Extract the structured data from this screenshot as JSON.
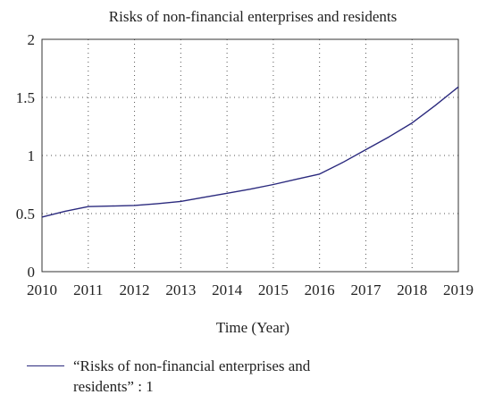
{
  "chart_data": {
    "type": "line",
    "title": "Risks of non-financial enterprises and residents",
    "xlabel": "Time (Year)",
    "ylabel": "",
    "xlim": [
      2010,
      2019
    ],
    "ylim": [
      0,
      2
    ],
    "x_ticks": [
      "2010",
      "2011",
      "2012",
      "2013",
      "2014",
      "2015",
      "2016",
      "2017",
      "2018",
      "2019"
    ],
    "y_ticks": [
      "0",
      "0.5",
      "1",
      "1.5",
      "2"
    ],
    "grid": true,
    "legend_position": "bottom",
    "series": [
      {
        "name": "“Risks of non-financial enterprises and residents” : 1",
        "color": "#2b2a7e",
        "x": [
          2010,
          2010.5,
          2011,
          2011.5,
          2012,
          2012.5,
          2013,
          2013.5,
          2014,
          2014.5,
          2015,
          2015.5,
          2016,
          2016.5,
          2017,
          2017.5,
          2018,
          2018.5,
          2019
        ],
        "y": [
          0.47,
          0.52,
          0.56,
          0.565,
          0.57,
          0.585,
          0.605,
          0.64,
          0.675,
          0.71,
          0.75,
          0.795,
          0.84,
          0.94,
          1.05,
          1.16,
          1.28,
          1.43,
          1.59
        ]
      }
    ]
  }
}
